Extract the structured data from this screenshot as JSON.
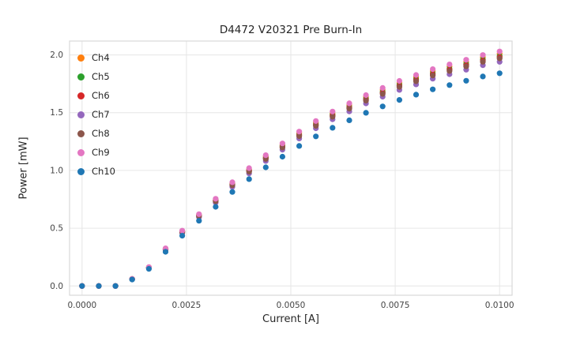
{
  "chart_data": {
    "type": "scatter",
    "title": "D4472 V20321 Pre Burn-In",
    "xlabel": "Current [A]",
    "ylabel": "Power [mW]",
    "xlim": [
      -0.0003,
      0.0103
    ],
    "ylim": [
      -0.08,
      2.12
    ],
    "xticks": [
      0.0,
      0.0025,
      0.005,
      0.0075,
      0.01
    ],
    "xtick_labels": [
      "0.0000",
      "0.0025",
      "0.0050",
      "0.0075",
      "0.0100"
    ],
    "yticks": [
      0.0,
      0.5,
      1.0,
      1.5,
      2.0
    ],
    "ytick_labels": [
      "0.0",
      "0.5",
      "1.0",
      "1.5",
      "2.0"
    ],
    "grid": true,
    "grid_color": "#e6e6e6",
    "spine_color": "#d9d9d9",
    "legend_position": "upper-left",
    "x": [
      0.0,
      0.0004,
      0.0008,
      0.0012,
      0.0016,
      0.002,
      0.0024,
      0.0028,
      0.0032,
      0.0036,
      0.004,
      0.0044,
      0.0048,
      0.0052,
      0.0056,
      0.006,
      0.0064,
      0.0068,
      0.0072,
      0.0076,
      0.008,
      0.0084,
      0.0088,
      0.0092,
      0.0096,
      0.01
    ],
    "series": [
      {
        "name": "Ch4",
        "color": "#ff7f0e",
        "values": [
          0,
          0,
          0,
          0.061,
          0.162,
          0.323,
          0.475,
          0.616,
          0.747,
          0.889,
          1.01,
          1.121,
          1.222,
          1.323,
          1.414,
          1.495,
          1.566,
          1.636,
          1.697,
          1.757,
          1.808,
          1.858,
          1.899,
          1.939,
          1.98,
          2.01
        ]
      },
      {
        "name": "Ch5",
        "color": "#2ca02c",
        "values": [
          0,
          0,
          0,
          0.06,
          0.16,
          0.32,
          0.47,
          0.61,
          0.74,
          0.88,
          1.0,
          1.11,
          1.21,
          1.31,
          1.4,
          1.48,
          1.55,
          1.62,
          1.68,
          1.74,
          1.79,
          1.84,
          1.88,
          1.92,
          1.96,
          1.99
        ]
      },
      {
        "name": "Ch6",
        "color": "#d62728",
        "values": [
          0,
          0,
          0,
          0.06,
          0.159,
          0.318,
          0.468,
          0.607,
          0.736,
          0.876,
          0.995,
          1.104,
          1.204,
          1.303,
          1.393,
          1.473,
          1.542,
          1.612,
          1.672,
          1.731,
          1.781,
          1.831,
          1.871,
          1.91,
          1.95,
          1.98
        ]
      },
      {
        "name": "Ch7",
        "color": "#9467bd",
        "values": [
          0,
          0,
          0,
          0.059,
          0.156,
          0.312,
          0.458,
          0.595,
          0.722,
          0.858,
          0.975,
          1.082,
          1.18,
          1.277,
          1.365,
          1.443,
          1.511,
          1.58,
          1.638,
          1.697,
          1.745,
          1.794,
          1.833,
          1.872,
          1.911,
          1.94
        ]
      },
      {
        "name": "Ch8",
        "color": "#8c564b",
        "values": [
          0,
          0,
          0,
          0.059,
          0.158,
          0.317,
          0.465,
          0.604,
          0.733,
          0.871,
          0.99,
          1.099,
          1.198,
          1.297,
          1.386,
          1.465,
          1.535,
          1.604,
          1.663,
          1.723,
          1.772,
          1.822,
          1.861,
          1.901,
          1.94,
          1.97
        ]
      },
      {
        "name": "Ch9",
        "color": "#e377c2",
        "values": [
          0,
          0,
          0,
          0.061,
          0.163,
          0.326,
          0.479,
          0.622,
          0.755,
          0.898,
          1.02,
          1.132,
          1.234,
          1.336,
          1.428,
          1.51,
          1.581,
          1.652,
          1.714,
          1.775,
          1.826,
          1.877,
          1.918,
          1.958,
          1.999,
          2.03
        ]
      },
      {
        "name": "Ch10",
        "color": "#1f77b4",
        "values": [
          0,
          0,
          0,
          0.056,
          0.148,
          0.296,
          0.435,
          0.564,
          0.685,
          0.814,
          0.925,
          1.027,
          1.119,
          1.212,
          1.295,
          1.369,
          1.434,
          1.499,
          1.554,
          1.61,
          1.656,
          1.702,
          1.739,
          1.776,
          1.813,
          1.841
        ]
      }
    ]
  }
}
